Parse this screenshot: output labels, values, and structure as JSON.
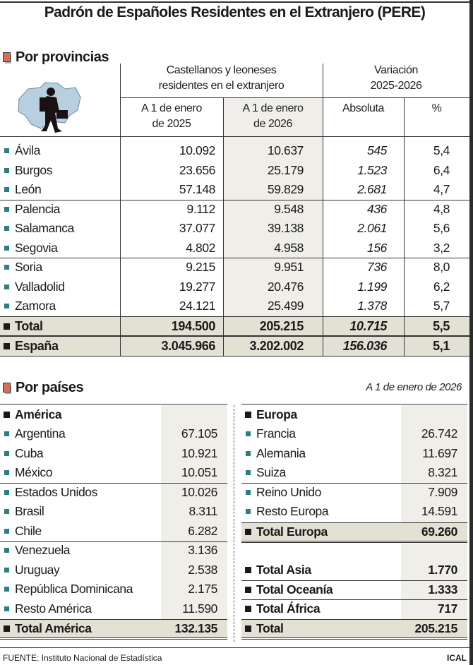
{
  "title": "Padrón de Españoles Residentes en el Extranjero (PERE)",
  "provinces": {
    "section_title": "Por provincias",
    "header_group1": [
      "Castellanos y leoneses",
      "residentes en el extranjero"
    ],
    "header_group2": [
      "Variación",
      "2025-2026"
    ],
    "col_2025": [
      "A 1 de enero",
      "de 2025"
    ],
    "col_2026": [
      "A 1 de enero",
      "de 2026"
    ],
    "col_abs": "Absoluta",
    "col_pct": "%",
    "rows": [
      {
        "name": "Ávila",
        "v2025": "10.092",
        "v2026": "10.637",
        "abs": "545",
        "pct": "5,4"
      },
      {
        "name": "Burgos",
        "v2025": "23.656",
        "v2026": "25.179",
        "abs": "1.523",
        "pct": "6,4"
      },
      {
        "name": "León",
        "v2025": "57.148",
        "v2026": "59.829",
        "abs": "2.681",
        "pct": "4,7"
      },
      {
        "name": "Palencia",
        "v2025": "9.112",
        "v2026": "9.548",
        "abs": "436",
        "pct": "4,8"
      },
      {
        "name": "Salamanca",
        "v2025": "37.077",
        "v2026": "39.138",
        "abs": "2.061",
        "pct": "5,6"
      },
      {
        "name": "Segovia",
        "v2025": "4.802",
        "v2026": "4.958",
        "abs": "156",
        "pct": "3,2"
      },
      {
        "name": "Soria",
        "v2025": "9.215",
        "v2026": "9.951",
        "abs": "736",
        "pct": "8,0"
      },
      {
        "name": "Valladolid",
        "v2025": "19.277",
        "v2026": "20.476",
        "abs": "1.199",
        "pct": "6,2"
      },
      {
        "name": "Zamora",
        "v2025": "24.121",
        "v2026": "25.499",
        "abs": "1.378",
        "pct": "5,7"
      }
    ],
    "totals": [
      {
        "name": "Total",
        "v2025": "194.500",
        "v2026": "205.215",
        "abs": "10.715",
        "pct": "5,5"
      },
      {
        "name": "España",
        "v2025": "3.045.966",
        "v2026": "3.202.002",
        "abs": "156.036",
        "pct": "5,1"
      }
    ]
  },
  "countries": {
    "section_title": "Por países",
    "date_note": "A 1 de enero de 2026",
    "america": {
      "title": "América",
      "rows": [
        {
          "name": "Argentina",
          "value": "67.105"
        },
        {
          "name": "Cuba",
          "value": "10.921"
        },
        {
          "name": "México",
          "value": "10.051"
        },
        {
          "name": "Estados Unidos",
          "value": "10.026"
        },
        {
          "name": "Brasil",
          "value": "8.311"
        },
        {
          "name": "Chile",
          "value": "6.282"
        },
        {
          "name": "Venezuela",
          "value": "3.136"
        },
        {
          "name": "Uruguay",
          "value": "2.538"
        },
        {
          "name": "República Dominicana",
          "value": "2.175"
        },
        {
          "name": "Resto América",
          "value": "11.590"
        }
      ],
      "total": {
        "name": "Total América",
        "value": "132.135"
      }
    },
    "europa": {
      "title": "Europa",
      "rows": [
        {
          "name": "Francia",
          "value": "26.742"
        },
        {
          "name": "Alemania",
          "value": "11.697"
        },
        {
          "name": "Suiza",
          "value": "8.321"
        },
        {
          "name": "Reino Unido",
          "value": "7.909"
        },
        {
          "name": "Resto Europa",
          "value": "14.591"
        }
      ],
      "total": {
        "name": "Total Europa",
        "value": "69.260"
      }
    },
    "others": [
      {
        "name": "Total Asia",
        "value": "1.770"
      },
      {
        "name": "Total Oceanía",
        "value": "1.333"
      },
      {
        "name": "Total África",
        "value": "717"
      }
    ],
    "grand_total": {
      "name": "Total",
      "value": "205.215"
    }
  },
  "footer": {
    "source": "FUENTE: Instituto Nacional de Estadística",
    "credit": "ICAL"
  },
  "colors": {
    "bullet": "#2a7f7f",
    "section_icon": "#e06b55",
    "shade": "#efeee8",
    "total_bg": "#e3e1d3"
  }
}
